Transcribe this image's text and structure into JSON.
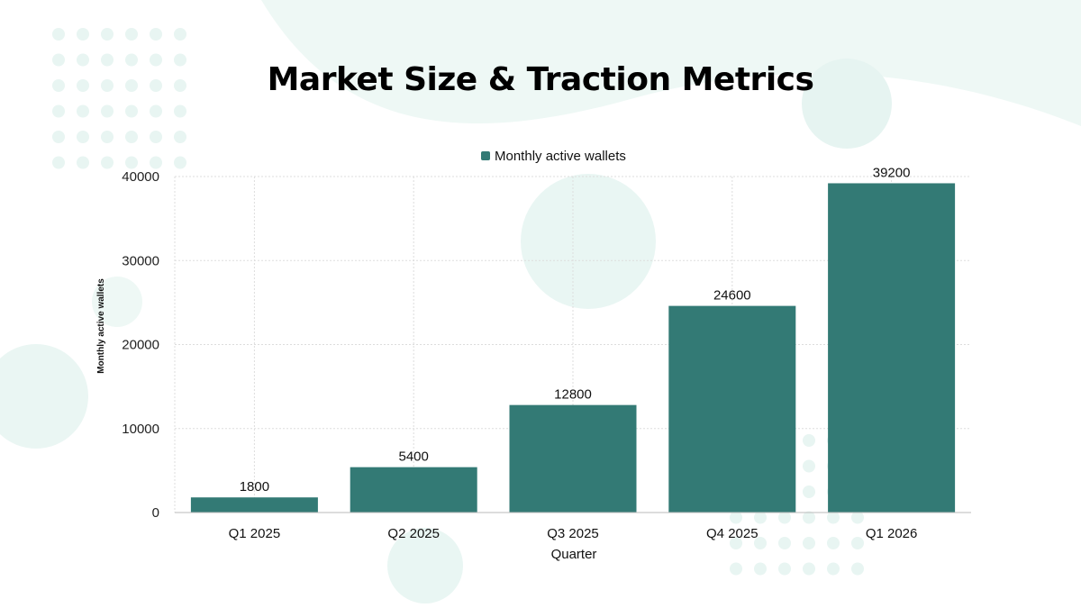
{
  "title": "Market Size & Traction Metrics",
  "colors": {
    "bar": "#337a75",
    "accent_bg": "#e8f5f2"
  },
  "chart_data": {
    "type": "bar",
    "title": "Market Size & Traction Metrics",
    "categories": [
      "Q1 2025",
      "Q2 2025",
      "Q3 2025",
      "Q4 2025",
      "Q1 2026"
    ],
    "series": [
      {
        "name": "Monthly active wallets",
        "values": [
          1800,
          5400,
          12800,
          24600,
          39200
        ]
      }
    ],
    "xlabel": "Quarter",
    "ylabel": "Monthly active wallets",
    "ylim": [
      0,
      40000
    ],
    "yticks": [
      0,
      10000,
      20000,
      30000,
      40000
    ],
    "grid": true,
    "legend": "top-center",
    "data_labels": true
  }
}
